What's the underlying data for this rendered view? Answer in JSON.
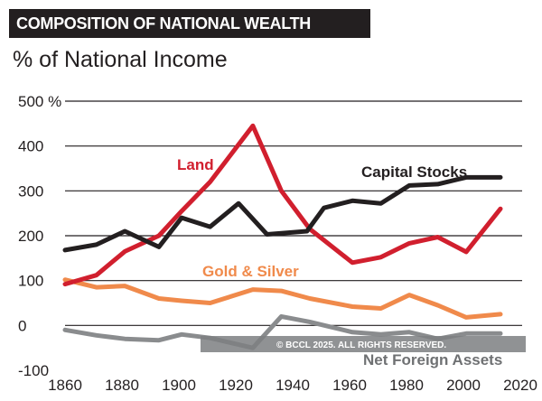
{
  "chart_data": {
    "type": "line",
    "title": "COMPOSITION OF NATIONAL WEALTH",
    "subtitle": "% of National Income",
    "xlim": [
      1860,
      2020
    ],
    "ylim": [
      -100,
      500
    ],
    "x_ticks": [
      "1860",
      "1880",
      "1900",
      "1920",
      "1940",
      "1960",
      "1980",
      "2000",
      "2020"
    ],
    "y_ticks": [
      "500 %",
      "400",
      "300",
      "200",
      "100",
      "0",
      "-100"
    ],
    "grid": true,
    "series": [
      {
        "name": "Capital Stocks",
        "color": "#231f20",
        "x": [
          1860,
          1871,
          1881,
          1893,
          1901,
          1911,
          1921,
          1931,
          1945,
          1951,
          1961,
          1971,
          1981,
          1991,
          2001,
          2013
        ],
        "y": [
          168,
          180,
          210,
          175,
          240,
          220,
          272,
          203,
          210,
          262,
          278,
          272,
          312,
          315,
          330,
          330
        ]
      },
      {
        "name": "Land",
        "color": "#d11f2e",
        "x": [
          1860,
          1871,
          1881,
          1893,
          1901,
          1911,
          1926,
          1936,
          1946,
          1961,
          1971,
          1981,
          1991,
          2001,
          2013
        ],
        "y": [
          92,
          112,
          165,
          200,
          255,
          320,
          445,
          300,
          215,
          140,
          152,
          183,
          197,
          164,
          260
        ]
      },
      {
        "name": "Gold & Silver",
        "color": "#f08a4b",
        "x": [
          1860,
          1871,
          1881,
          1893,
          1901,
          1911,
          1926,
          1936,
          1946,
          1961,
          1971,
          1981,
          1991,
          2001,
          2013
        ],
        "y": [
          102,
          85,
          88,
          60,
          55,
          50,
          80,
          77,
          60,
          42,
          38,
          68,
          45,
          18,
          25
        ]
      },
      {
        "name": "Net Foreign Assets",
        "color": "#8a8c8e",
        "x": [
          1860,
          1871,
          1881,
          1893,
          1901,
          1911,
          1926,
          1936,
          1946,
          1961,
          1971,
          1981,
          1991,
          2001,
          2013
        ],
        "y": [
          -10,
          -22,
          -30,
          -33,
          -20,
          -28,
          -50,
          20,
          8,
          -15,
          -20,
          -15,
          -30,
          -18,
          -18
        ]
      }
    ],
    "credit": "© BCCL 2025. ALL RIGHTS RESERVED."
  }
}
